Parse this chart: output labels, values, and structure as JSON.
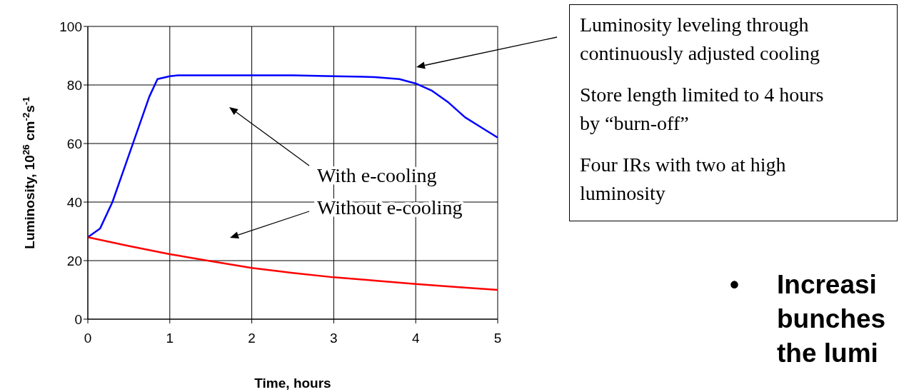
{
  "chart_data": {
    "type": "line",
    "xlabel": "Time, hours",
    "ylabel": "Luminosity, 10$^{26}$ cm$^{-2}$s$^{-1}$",
    "xlim": [
      0,
      5
    ],
    "xticks": [
      0,
      1,
      2,
      3,
      4,
      5
    ],
    "ylim": [
      0,
      100
    ],
    "yticks": [
      0,
      20,
      40,
      60,
      80,
      100
    ],
    "grid": true,
    "marker": "none",
    "line_style": "solid",
    "series": [
      {
        "name": "With e-cooling",
        "color": "#0000ff",
        "x": [
          0,
          0.15,
          0.3,
          0.45,
          0.6,
          0.75,
          0.85,
          1,
          1.1,
          1.5,
          2,
          2.5,
          3,
          3.5,
          3.8,
          4,
          4.2,
          4.4,
          4.6,
          4.8,
          5
        ],
        "values": [
          28,
          31,
          40,
          52,
          64,
          76,
          82,
          83,
          83.3,
          83.3,
          83.3,
          83.3,
          83,
          82.7,
          82,
          80.5,
          78,
          74,
          69,
          65.5,
          62
        ]
      },
      {
        "name": "Without e-cooling",
        "color": "#ff0000",
        "x": [
          0,
          0.5,
          1,
          1.5,
          2,
          2.5,
          3,
          3.5,
          4,
          4.5,
          5
        ],
        "values": [
          28,
          25,
          22.2,
          19.8,
          17.5,
          15.8,
          14.3,
          13.2,
          12,
          11,
          10
        ]
      }
    ],
    "annotations": [
      "Luminosity leveling through\ncontinuously adjusted cooling",
      "Store length limited to 4 hours\nby “burn-off”",
      "Four IRs with two at high\nluminosity",
      "•\tIncreasi\nbunches\nthe lumi"
    ]
  }
}
